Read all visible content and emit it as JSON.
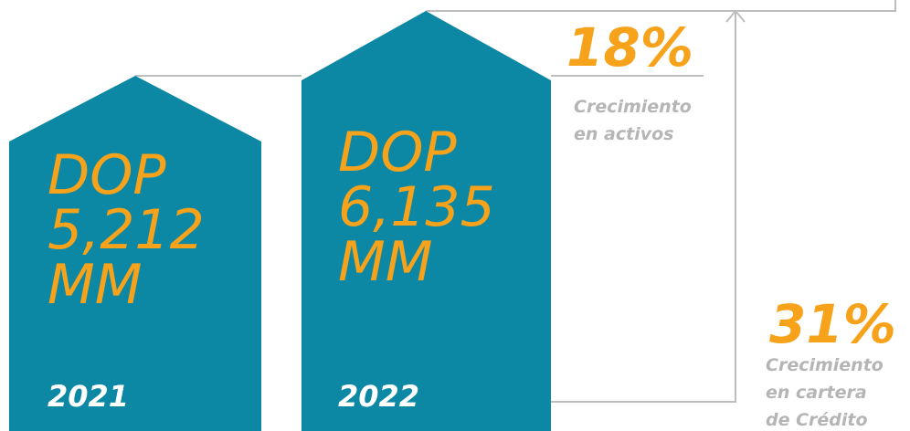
{
  "blocks": [
    {
      "currency": "DOP",
      "amount": "5,212",
      "unit": "MM",
      "year": "2021"
    },
    {
      "currency": "DOP",
      "amount": "6,135",
      "unit": "MM",
      "year": "2022"
    }
  ],
  "growth": [
    {
      "value": "18%",
      "label": [
        "Crecimiento",
        "en activos"
      ]
    },
    {
      "value": "31%",
      "label": [
        "Crecimiento",
        "en cartera",
        "de Crédito"
      ]
    }
  ]
}
